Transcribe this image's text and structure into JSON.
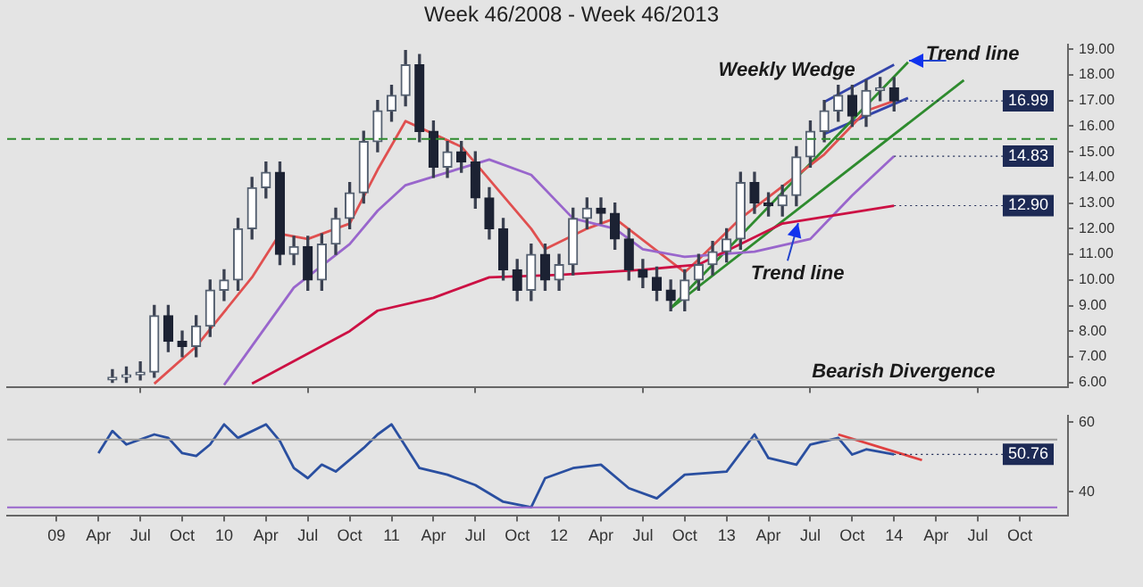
{
  "chart_data": [
    {
      "type": "candlestick",
      "title": "Week 46/2008 - Week 46/2013",
      "x": [
        "2009-05",
        "2009-06",
        "2009-07",
        "2009-08",
        "2009-09",
        "2009-10",
        "2009-11",
        "2009-12",
        "2010-01",
        "2010-02",
        "2010-03",
        "2010-04",
        "2010-05",
        "2010-06",
        "2010-07",
        "2010-08",
        "2010-09",
        "2010-10",
        "2010-11",
        "2010-12",
        "2011-01",
        "2011-02",
        "2011-03",
        "2011-04",
        "2011-05",
        "2011-06",
        "2011-07",
        "2011-08",
        "2011-09",
        "2011-10",
        "2011-11",
        "2011-12",
        "2012-01",
        "2012-02",
        "2012-03",
        "2012-04",
        "2012-05",
        "2012-06",
        "2012-07",
        "2012-08",
        "2012-09",
        "2012-10",
        "2012-11",
        "2012-12",
        "2013-01",
        "2013-02",
        "2013-03",
        "2013-04",
        "2013-05",
        "2013-06",
        "2013-07",
        "2013-08",
        "2013-09",
        "2013-10",
        "2013-11",
        "2013-12",
        "2014-01"
      ],
      "ohlc": [
        [
          6.1,
          6.5,
          6.0,
          6.2
        ],
        [
          6.2,
          6.6,
          6.0,
          6.3
        ],
        [
          6.3,
          6.8,
          6.1,
          6.4
        ],
        [
          6.4,
          9.0,
          6.2,
          8.6
        ],
        [
          8.6,
          9.0,
          7.2,
          7.6
        ],
        [
          7.6,
          8.0,
          7.0,
          7.4
        ],
        [
          7.4,
          8.6,
          7.0,
          8.2
        ],
        [
          8.2,
          10.0,
          7.8,
          9.6
        ],
        [
          9.6,
          10.4,
          9.2,
          10.0
        ],
        [
          10.0,
          12.4,
          9.6,
          12.0
        ],
        [
          12.0,
          14.0,
          11.6,
          13.6
        ],
        [
          13.6,
          14.6,
          13.2,
          14.2
        ],
        [
          14.2,
          14.6,
          10.6,
          11.0
        ],
        [
          11.0,
          11.7,
          10.6,
          11.3
        ],
        [
          11.3,
          11.7,
          9.6,
          10.0
        ],
        [
          10.0,
          11.8,
          9.6,
          11.4
        ],
        [
          11.4,
          12.8,
          11.0,
          12.4
        ],
        [
          12.4,
          13.8,
          12.0,
          13.4
        ],
        [
          13.4,
          15.8,
          13.0,
          15.4
        ],
        [
          15.4,
          17.0,
          15.0,
          16.6
        ],
        [
          16.6,
          17.6,
          16.2,
          17.2
        ],
        [
          17.2,
          18.95,
          16.8,
          18.4
        ],
        [
          18.4,
          18.8,
          15.4,
          15.8
        ],
        [
          15.8,
          16.2,
          14.0,
          14.4
        ],
        [
          14.4,
          15.4,
          14.0,
          15.0
        ],
        [
          15.0,
          15.4,
          14.2,
          14.6
        ],
        [
          14.6,
          15.0,
          12.8,
          13.2
        ],
        [
          13.2,
          13.6,
          11.6,
          12.0
        ],
        [
          12.0,
          12.4,
          10.0,
          10.4
        ],
        [
          10.4,
          10.8,
          9.2,
          9.6
        ],
        [
          9.6,
          11.4,
          9.2,
          11.0
        ],
        [
          11.0,
          11.4,
          9.6,
          10.0
        ],
        [
          10.0,
          11.0,
          9.6,
          10.6
        ],
        [
          10.6,
          12.8,
          10.2,
          12.4
        ],
        [
          12.4,
          13.2,
          12.0,
          12.8
        ],
        [
          12.8,
          13.2,
          12.2,
          12.6
        ],
        [
          12.6,
          13.0,
          11.2,
          11.6
        ],
        [
          11.6,
          12.0,
          10.0,
          10.4
        ],
        [
          10.4,
          10.8,
          9.7,
          10.1
        ],
        [
          10.1,
          10.5,
          9.2,
          9.6
        ],
        [
          9.6,
          10.0,
          8.8,
          9.2
        ],
        [
          9.2,
          10.4,
          8.8,
          10.0
        ],
        [
          10.0,
          11.0,
          9.6,
          10.6
        ],
        [
          10.6,
          11.5,
          10.2,
          11.1
        ],
        [
          11.1,
          12.0,
          10.7,
          11.6
        ],
        [
          11.6,
          14.2,
          11.2,
          13.8
        ],
        [
          13.8,
          14.2,
          12.6,
          13.0
        ],
        [
          13.0,
          13.4,
          12.5,
          12.9
        ],
        [
          12.9,
          13.7,
          12.5,
          13.3
        ],
        [
          13.3,
          15.2,
          12.9,
          14.8
        ],
        [
          14.8,
          16.2,
          14.4,
          15.8
        ],
        [
          15.8,
          17.0,
          15.4,
          16.6
        ],
        [
          16.6,
          17.6,
          16.2,
          17.2
        ],
        [
          17.2,
          17.6,
          16.0,
          16.4
        ],
        [
          16.4,
          17.8,
          16.0,
          17.4
        ],
        [
          17.4,
          17.9,
          17.0,
          17.5
        ],
        [
          17.5,
          17.9,
          16.6,
          16.99
        ]
      ],
      "series": [
        {
          "type": "line",
          "color": "#cc1144",
          "x": [
            "2010-03",
            "2010-10",
            "2010-12",
            "2011-04",
            "2011-08",
            "2012-01",
            "2012-07",
            "2012-11",
            "2013-05",
            "2014-01"
          ],
          "values": [
            5.95,
            8.0,
            8.8,
            9.3,
            10.1,
            10.2,
            10.4,
            10.6,
            12.2,
            12.9
          ]
        },
        {
          "type": "line",
          "color": "#9966cc",
          "x": [
            "2010-01",
            "2010-06",
            "2010-10",
            "2010-12",
            "2011-02",
            "2011-08",
            "2011-11",
            "2012-02",
            "2012-05",
            "2012-07",
            "2012-10",
            "2013-03",
            "2013-07",
            "2013-10",
            "2014-01"
          ],
          "values": [
            5.9,
            9.7,
            11.4,
            12.7,
            13.7,
            14.7,
            14.1,
            12.4,
            12.0,
            11.2,
            10.9,
            11.1,
            11.6,
            13.3,
            14.83
          ]
        },
        {
          "type": "line",
          "color": "#e05050",
          "x": [
            "2009-08",
            "2009-11",
            "2010-03",
            "2010-05",
            "2010-07",
            "2010-10",
            "2010-12",
            "2011-02",
            "2011-06",
            "2011-11",
            "2011-12",
            "2012-03",
            "2012-05",
            "2012-10",
            "2012-11",
            "2013-02",
            "2013-08",
            "2013-11",
            "2014-01"
          ],
          "values": [
            5.95,
            7.4,
            10.1,
            11.8,
            11.6,
            12.2,
            14.3,
            16.2,
            15.2,
            12.0,
            11.2,
            12.0,
            12.4,
            10.3,
            10.8,
            12.4,
            14.9,
            16.6,
            16.99
          ]
        },
        {
          "type": "line",
          "color": "#2e8b2e",
          "x": [
            "2012-09",
            "2014-06"
          ],
          "values": [
            8.9,
            17.8
          ]
        },
        {
          "type": "line",
          "color": "#2e8b2e",
          "x": [
            "2012-09",
            "2014-02"
          ],
          "values": [
            8.9,
            18.5
          ]
        },
        {
          "type": "line",
          "color": "#3344aa",
          "x": [
            "2013-08",
            "2014-01"
          ],
          "values": [
            16.95,
            18.4
          ]
        },
        {
          "type": "line",
          "color": "#3344aa",
          "x": [
            "2013-08",
            "2014-02"
          ],
          "values": [
            15.7,
            17.1
          ]
        }
      ],
      "ref_lines": [
        {
          "axis": "y",
          "value": 15.5,
          "color": "#2e8b2e",
          "line_style": "dashed"
        }
      ],
      "annotations": [
        "Weekly Wedge",
        "Trend line",
        "Trend line",
        "Bearish Divergence",
        {
          "text": "16.99",
          "x": "2014-01",
          "y": 16.99
        },
        {
          "text": "14.83",
          "x": "2014-01",
          "y": 14.83
        },
        {
          "text": "12.90",
          "x": "2014-01",
          "y": 12.9
        }
      ],
      "xlim": [
        "2008-09-15",
        "2015-01-15"
      ],
      "xticks": [
        {
          "value": "2009-01",
          "label": null
        },
        {
          "value": "2010-01",
          "label": null
        },
        {
          "value": "2011-01",
          "label": null
        },
        {
          "value": "2012-01",
          "label": null
        },
        {
          "value": "2013-01",
          "label": null
        },
        {
          "value": "2014-01",
          "label": null
        }
      ],
      "ylim": [
        5.8,
        19.2
      ],
      "yticks": [
        {
          "value": 6,
          "label": "6.00"
        },
        {
          "value": 7,
          "label": "7.00"
        },
        {
          "value": 8,
          "label": "8.00"
        },
        {
          "value": 9,
          "label": "9.00"
        },
        {
          "value": 10,
          "label": "10.00"
        },
        {
          "value": 11,
          "label": "11.00"
        },
        {
          "value": 12,
          "label": "12.00"
        },
        {
          "value": 13,
          "label": "13.00"
        },
        {
          "value": 14,
          "label": "14.00"
        },
        {
          "value": 15,
          "label": "15.00"
        },
        {
          "value": 16,
          "label": "16.00"
        },
        {
          "value": 17,
          "label": "17.00"
        },
        {
          "value": 18,
          "label": "18.00"
        },
        {
          "value": 19,
          "label": "19.00"
        }
      ],
      "tick_labels": "y",
      "grid": false,
      "legend": false,
      "marker": "none"
    },
    {
      "type": "line",
      "series": [
        {
          "color": "#2a4fa0",
          "x": [
            "2009-04",
            "2009-05",
            "2009-06",
            "2009-08",
            "2009-09",
            "2009-10",
            "2009-11",
            "2009-12",
            "2010-01",
            "2010-02",
            "2010-04",
            "2010-05",
            "2010-06",
            "2010-07",
            "2010-08",
            "2010-09",
            "2010-11",
            "2010-12",
            "2011-01",
            "2011-03",
            "2011-05",
            "2011-07",
            "2011-09",
            "2011-11",
            "2011-12",
            "2012-02",
            "2012-04",
            "2012-06",
            "2012-08",
            "2012-10",
            "2013-01",
            "2013-03",
            "2013-04",
            "2013-06",
            "2013-07",
            "2013-09",
            "2013-10",
            "2013-11",
            "2014-01"
          ],
          "values": [
            51.1,
            57.5,
            53.6,
            56.5,
            55.5,
            51.1,
            50.3,
            53.6,
            59.4,
            55.5,
            59.4,
            54.6,
            46.8,
            43.9,
            47.8,
            45.8,
            52.6,
            56.5,
            59.4,
            46.8,
            44.9,
            41.9,
            37.1,
            35.5,
            43.9,
            46.8,
            47.8,
            41.0,
            38.1,
            44.9,
            45.8,
            56.5,
            49.7,
            47.8,
            53.6,
            55.5,
            50.7,
            52.2,
            50.76
          ]
        },
        {
          "color": "#e04040",
          "x": [
            "2013-09",
            "2014-03"
          ],
          "values": [
            56.5,
            49.1
          ]
        }
      ],
      "ref_lines": [
        {
          "axis": "y",
          "value": 55,
          "color": "#999999",
          "line_style": "solid"
        },
        {
          "axis": "y",
          "value": 35.5,
          "color": "#9966cc",
          "line_style": "solid"
        }
      ],
      "annotations": [
        {
          "text": "50.76",
          "x": "2014-01",
          "y": 50.76
        }
      ],
      "xlim": [
        "2008-09-15",
        "2015-01-15"
      ],
      "xticks": [
        {
          "value": "2009-01",
          "label": "09"
        },
        {
          "value": "2009-04",
          "label": "Apr"
        },
        {
          "value": "2009-07",
          "label": "Jul"
        },
        {
          "value": "2009-10",
          "label": "Oct"
        },
        {
          "value": "2010-01",
          "label": "10"
        },
        {
          "value": "2010-04",
          "label": "Apr"
        },
        {
          "value": "2010-07",
          "label": "Jul"
        },
        {
          "value": "2010-10",
          "label": "Oct"
        },
        {
          "value": "2011-01",
          "label": "11"
        },
        {
          "value": "2011-04",
          "label": "Apr"
        },
        {
          "value": "2011-07",
          "label": "Jul"
        },
        {
          "value": "2011-10",
          "label": "Oct"
        },
        {
          "value": "2012-01",
          "label": "12"
        },
        {
          "value": "2012-04",
          "label": "Apr"
        },
        {
          "value": "2012-07",
          "label": "Jul"
        },
        {
          "value": "2012-10",
          "label": "Oct"
        },
        {
          "value": "2013-01",
          "label": "13"
        },
        {
          "value": "2013-04",
          "label": "Apr"
        },
        {
          "value": "2013-07",
          "label": "Jul"
        },
        {
          "value": "2013-10",
          "label": "Oct"
        },
        {
          "value": "2014-01",
          "label": "14"
        },
        {
          "value": "2014-04",
          "label": "Apr"
        },
        {
          "value": "2014-07",
          "label": "Jul"
        },
        {
          "value": "2014-10",
          "label": "Oct"
        }
      ],
      "ylim": [
        33,
        62
      ],
      "yticks": [
        40,
        60
      ],
      "grid": false,
      "legend": false,
      "marker": "none"
    }
  ]
}
